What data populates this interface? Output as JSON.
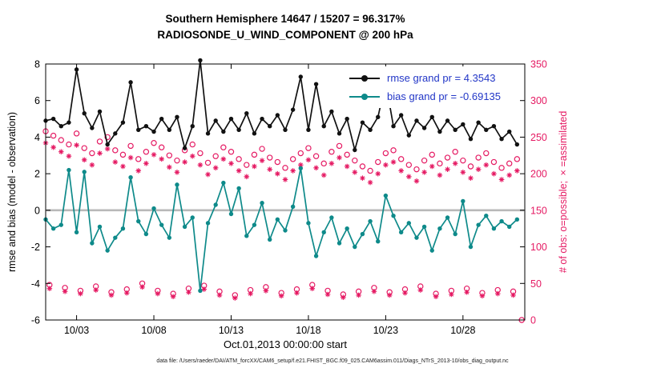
{
  "title": {
    "line1": "Southern Hemisphere 14647 / 15207 = 96.317%",
    "line2": "RADIOSONDE_U_WIND_COMPONENT @ 200 hPa"
  },
  "axes": {
    "left_label": "rmse and bias (model - observation)",
    "right_label": "# of obs: o=possible; ×=assimilated",
    "x_label": "Oct.01,2013 00:00:00 start",
    "left_ticks": [
      -6,
      -4,
      -2,
      0,
      2,
      4,
      6,
      8
    ],
    "right_ticks": [
      0,
      50,
      100,
      150,
      200,
      250,
      300,
      350
    ],
    "x_tick_labels": [
      "10/03",
      "10/08",
      "10/13",
      "10/18",
      "10/23",
      "10/28"
    ],
    "x_tick_days": [
      3,
      8,
      13,
      18,
      23,
      28
    ],
    "x_range_days": [
      1,
      32
    ],
    "left_range": [
      -6,
      8
    ],
    "right_range": [
      0,
      350
    ]
  },
  "legend": [
    {
      "label": "rmse grand pr = 4.3543",
      "color": "#111111"
    },
    {
      "label": "bias grand pr = -0.69135",
      "color": "#0e8a8a"
    }
  ],
  "colors": {
    "rmse": "#111111",
    "bias": "#0e8a8a",
    "obs": "#e51a63",
    "zero_line": "#b8b8b8",
    "legend_text": "#2236c7",
    "axis": "#000000"
  },
  "footer": "data file: /Users/raeder/DAI/ATM_forcXX/CAM6_setup/f.e21.FHIST_BGC.f09_025.CAM6assim.011/Diags_NTrS_2013-10/obs_diag_output.nc",
  "chart_data": {
    "type": "line",
    "title": "Southern Hemisphere 14647 / 15207 = 96.317% | RADIOSONDE_U_WIND_COMPONENT @ 200 hPa",
    "xlabel": "Oct.01,2013 00:00:00 start",
    "ylabel_left": "rmse and bias (model - observation)",
    "ylabel_right": "# of obs: o=possible; ×=assimilated",
    "ylim_left": [
      -6,
      8
    ],
    "ylim_right": [
      0,
      350
    ],
    "x_unit": "day of October 2013",
    "stats": {
      "used_obs": 14647,
      "possible_obs": 15207,
      "pct_used": 96.317,
      "rmse_grand_pr": 4.3543,
      "bias_grand_pr": -0.69135
    },
    "x_days": [
      1,
      1.5,
      2,
      2.5,
      3,
      3.5,
      4,
      4.5,
      5,
      5.5,
      6,
      6.5,
      7,
      7.5,
      8,
      8.5,
      9,
      9.5,
      10,
      10.5,
      11,
      11.5,
      12,
      12.5,
      13,
      13.5,
      14,
      14.5,
      15,
      15.5,
      16,
      16.5,
      17,
      17.5,
      18,
      18.5,
      19,
      19.5,
      20,
      20.5,
      21,
      21.5,
      22,
      22.5,
      23,
      23.5,
      24,
      24.5,
      25,
      25.5,
      26,
      26.5,
      27,
      27.5,
      28,
      28.5,
      29,
      29.5,
      30,
      30.5,
      31,
      31.5
    ],
    "series": [
      {
        "name": "rmse",
        "axis": "left",
        "marker": "filled-circle",
        "values": [
          4.9,
          5.0,
          4.6,
          4.8,
          7.7,
          5.3,
          4.5,
          5.4,
          3.6,
          4.2,
          4.8,
          7.0,
          4.4,
          4.6,
          4.3,
          5.0,
          4.4,
          5.1,
          3.4,
          4.6,
          8.2,
          4.2,
          4.9,
          4.3,
          5.0,
          4.4,
          5.3,
          4.2,
          5.0,
          4.6,
          5.2,
          4.4,
          5.5,
          7.3,
          4.4,
          6.9,
          4.6,
          5.4,
          4.2,
          5.0,
          3.3,
          4.8,
          4.4,
          5.1,
          7.0,
          4.6,
          5.2,
          4.1,
          4.9,
          4.5,
          5.1,
          4.3,
          4.9,
          4.4,
          4.7,
          3.9,
          4.8,
          4.4,
          4.6,
          3.9,
          4.3,
          3.6
        ]
      },
      {
        "name": "bias",
        "axis": "left",
        "marker": "filled-circle",
        "values": [
          -0.5,
          -1.0,
          -0.8,
          2.2,
          -1.2,
          2.1,
          -1.8,
          -0.9,
          -2.2,
          -1.5,
          -1.0,
          1.8,
          -0.6,
          -1.3,
          0.1,
          -0.8,
          -1.5,
          1.4,
          -0.9,
          -0.4,
          -4.4,
          -0.7,
          0.3,
          1.5,
          -0.2,
          1.2,
          -1.4,
          -0.8,
          0.4,
          -1.6,
          -0.5,
          -1.1,
          0.2,
          2.3,
          -0.7,
          -2.5,
          -1.2,
          -0.4,
          -1.8,
          -1.0,
          -2.0,
          -1.3,
          -0.6,
          -1.7,
          0.8,
          -0.3,
          -1.2,
          -0.7,
          -1.5,
          -0.9,
          -2.2,
          -1.0,
          -0.4,
          -1.3,
          0.5,
          -2.0,
          -0.8,
          -0.3,
          -1.0,
          -0.6,
          -0.9,
          -0.5
        ]
      },
      {
        "name": "possible_obs",
        "axis": "right",
        "marker": "o",
        "values": [
          258,
          252,
          246,
          240,
          255,
          235,
          228,
          244,
          250,
          232,
          226,
          238,
          220,
          230,
          242,
          236,
          225,
          218,
          232,
          240,
          228,
          215,
          224,
          236,
          230,
          220,
          212,
          226,
          234,
          222,
          216,
          208,
          220,
          228,
          235,
          224,
          214,
          230,
          238,
          226,
          218,
          210,
          204,
          216,
          228,
          232,
          220,
          212,
          206,
          218,
          226,
          214,
          222,
          230,
          218,
          210,
          222,
          228,
          216,
          208,
          214,
          220
        ]
      },
      {
        "name": "assimilated_obs",
        "axis": "right",
        "marker": "asterisk",
        "values": [
          242,
          236,
          230,
          224,
          239,
          219,
          212,
          228,
          234,
          216,
          210,
          222,
          204,
          214,
          226,
          220,
          209,
          202,
          216,
          224,
          212,
          199,
          208,
          220,
          214,
          204,
          196,
          210,
          218,
          206,
          200,
          192,
          204,
          212,
          219,
          208,
          198,
          214,
          222,
          210,
          202,
          194,
          188,
          200,
          212,
          216,
          204,
          196,
          190,
          202,
          210,
          198,
          206,
          214,
          202,
          194,
          206,
          212,
          200,
          192,
          198,
          204
        ]
      }
    ],
    "low_band": {
      "note": "off-synoptic-time bins with few soundings, right axis",
      "x_days": [
        1.25,
        2.25,
        3.25,
        4.25,
        5.25,
        6.25,
        7.25,
        8.25,
        9.25,
        10.25,
        11.25,
        12.25,
        13.25,
        14.25,
        15.25,
        16.25,
        17.25,
        18.25,
        19.25,
        20.25,
        21.25,
        22.25,
        23.25,
        24.25,
        25.25,
        26.25,
        27.25,
        28.25,
        29.25,
        30.25,
        31.25
      ],
      "possible": [
        48,
        44,
        40,
        46,
        38,
        42,
        50,
        40,
        36,
        43,
        47,
        39,
        34,
        41,
        45,
        37,
        42,
        48,
        40,
        35,
        39,
        44,
        38,
        42,
        46,
        36,
        40,
        43,
        37,
        41,
        39
      ],
      "assimilated": [
        43,
        39,
        36,
        41,
        34,
        37,
        45,
        36,
        32,
        38,
        42,
        34,
        30,
        36,
        40,
        33,
        37,
        43,
        35,
        31,
        34,
        39,
        34,
        37,
        41,
        32,
        35,
        38,
        33,
        36,
        34
      ]
    },
    "zero_point": {
      "x_day": 31.8,
      "count": 0
    },
    "grid": "zero-line-only",
    "legend_position": "top-right-inside"
  }
}
